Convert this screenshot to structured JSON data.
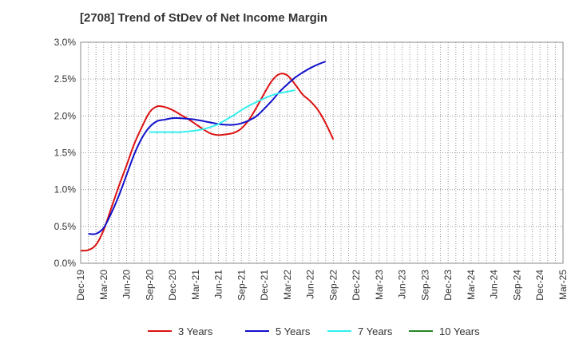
{
  "chart_data": {
    "type": "line",
    "title": "[2708]  Trend of StDev of Net Income Margin",
    "xlabel": "",
    "ylabel": "",
    "ylim": [
      0,
      3.0
    ],
    "y_ticks": [
      "0.0%",
      "0.5%",
      "1.0%",
      "1.5%",
      "2.0%",
      "2.5%",
      "3.0%"
    ],
    "y_tick_values": [
      0,
      0.5,
      1.0,
      1.5,
      2.0,
      2.5,
      3.0
    ],
    "x_ticks": [
      "Dec-19",
      "Mar-20",
      "Jun-20",
      "Sep-20",
      "Dec-20",
      "Mar-21",
      "Jun-21",
      "Sep-21",
      "Dec-21",
      "Mar-22",
      "Jun-22",
      "Sep-22",
      "Dec-22",
      "Mar-23",
      "Jun-23",
      "Sep-23",
      "Dec-23",
      "Mar-24",
      "Jun-24",
      "Sep-24",
      "Dec-24",
      "Mar-25"
    ],
    "grid": true,
    "legend_position": "bottom",
    "series": [
      {
        "name": "3 Years",
        "color": "#dd1111",
        "start_index": 0,
        "values": [
          0.17,
          0.18,
          0.25,
          0.45,
          0.75,
          1.05,
          1.33,
          1.62,
          1.85,
          2.05,
          2.13,
          2.12,
          2.08,
          2.02,
          1.96,
          1.89,
          1.82,
          1.76,
          1.74,
          1.75,
          1.77,
          1.83,
          1.95,
          2.12,
          2.31,
          2.48,
          2.57,
          2.55,
          2.43,
          2.29,
          2.2,
          2.08,
          1.9,
          1.68
        ]
      },
      {
        "name": "5 Years",
        "color": "#1111cc",
        "start_index": 1,
        "values": [
          0.4,
          0.4,
          0.48,
          0.68,
          0.92,
          1.2,
          1.48,
          1.7,
          1.85,
          1.93,
          1.95,
          1.97,
          1.97,
          1.96,
          1.95,
          1.93,
          1.91,
          1.89,
          1.88,
          1.88,
          1.9,
          1.94,
          2.0,
          2.1,
          2.21,
          2.33,
          2.43,
          2.52,
          2.59,
          2.65,
          2.7,
          2.74
        ]
      },
      {
        "name": "7 Years",
        "color": "#33eeee",
        "start_index": 9,
        "values": [
          1.78,
          1.78,
          1.78,
          1.78,
          1.78,
          1.79,
          1.8,
          1.82,
          1.85,
          1.89,
          1.95,
          2.01,
          2.08,
          2.14,
          2.19,
          2.24,
          2.28,
          2.31,
          2.33,
          2.35
        ]
      },
      {
        "name": "10 Years",
        "color": "#228822",
        "start_index": 0,
        "values": []
      }
    ]
  }
}
